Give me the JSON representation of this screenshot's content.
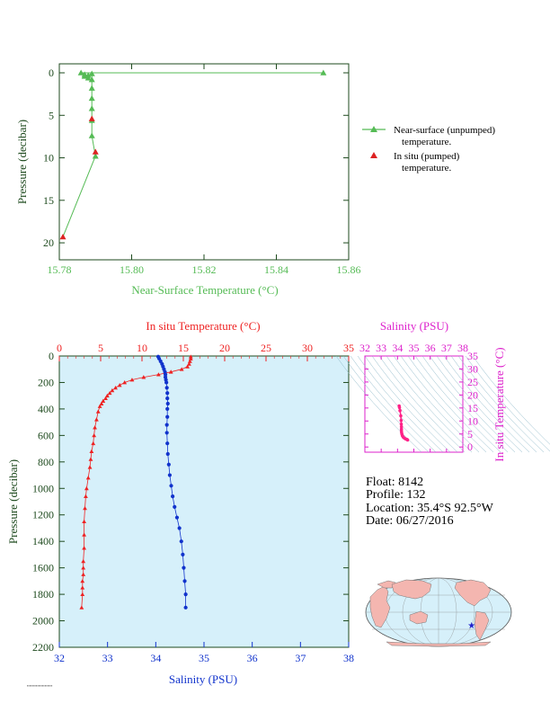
{
  "chart_data": [
    {
      "type": "line",
      "id": "near_surface",
      "xlabel": "Near-Surface Temperature (°C)",
      "ylabel": "Pressure (decibar)",
      "xlim": [
        15.78,
        15.86
      ],
      "ylim": [
        0,
        22
      ],
      "y_inverted": true,
      "xticks": [
        "15.78",
        "15.80",
        "15.82",
        "15.84",
        "15.86"
      ],
      "yticks": [
        "0",
        "5",
        "10",
        "15",
        "20"
      ],
      "grid": false,
      "legend_position": "right",
      "series": [
        {
          "name": "Near-surface (unpumped) temperature.",
          "color": "#55bb55",
          "marker": "triangle",
          "x": [
            15.853,
            15.786,
            15.787,
            15.787,
            15.788,
            15.788,
            15.789,
            15.789,
            15.789,
            15.789,
            15.789,
            15.789,
            15.789,
            15.79
          ],
          "y": [
            0.0,
            0.0,
            0.2,
            0.4,
            0.6,
            0.3,
            0.1,
            0.8,
            1.8,
            3.0,
            4.2,
            5.6,
            7.4,
            9.8
          ]
        },
        {
          "name": "In situ (pumped) temperature.",
          "color": "#dd2222",
          "marker": "triangle",
          "x": [
            15.789,
            15.79,
            15.781
          ],
          "y": [
            5.4,
            9.3,
            19.3
          ]
        }
      ]
    },
    {
      "type": "line",
      "id": "profile",
      "ylabel": "Pressure (decibar)",
      "ylim": [
        0,
        2200
      ],
      "y_inverted": true,
      "yticks": [
        "0",
        "200",
        "400",
        "600",
        "800",
        "1000",
        "1200",
        "1400",
        "1600",
        "1800",
        "2000",
        "2200"
      ],
      "x_top": {
        "label": "In situ Temperature (°C)",
        "lim": [
          0,
          35
        ],
        "ticks": [
          "0",
          "5",
          "10",
          "15",
          "20",
          "25",
          "30",
          "35"
        ]
      },
      "x_bottom": {
        "label": "Salinity (PSU)",
        "lim": [
          32,
          38
        ],
        "ticks": [
          "32",
          "33",
          "34",
          "35",
          "36",
          "37",
          "38"
        ]
      },
      "series": [
        {
          "name": "In situ Temperature",
          "color": "#ee2222",
          "marker": "triangle",
          "x": [
            15.9,
            15.9,
            15.8,
            15.7,
            15.5,
            14.8,
            13.5,
            12.0,
            10.2,
            8.8,
            7.9,
            7.3,
            6.8,
            6.4,
            6.1,
            5.8,
            5.6,
            5.3,
            5.1,
            4.9,
            4.7,
            4.5,
            4.3,
            4.2,
            4.1,
            3.9,
            3.8,
            3.7,
            3.5,
            3.3,
            3.2,
            3.1,
            3.0,
            3.0,
            3.0,
            2.9,
            2.9,
            2.9,
            2.8,
            2.8,
            2.8,
            2.7
          ],
          "y": [
            5,
            20,
            40,
            60,
            80,
            100,
            120,
            140,
            160,
            180,
            200,
            220,
            240,
            260,
            280,
            300,
            320,
            340,
            360,
            380,
            420,
            480,
            540,
            600,
            660,
            720,
            780,
            840,
            920,
            1000,
            1060,
            1150,
            1250,
            1350,
            1450,
            1550,
            1600,
            1650,
            1700,
            1750,
            1800,
            1900
          ]
        },
        {
          "name": "Salinity",
          "color": "#1133cc",
          "marker": "circle",
          "x": [
            34.05,
            34.07,
            34.1,
            34.13,
            34.15,
            34.17,
            34.19,
            34.2,
            34.2,
            34.21,
            34.22,
            34.23,
            34.24,
            34.24,
            34.25,
            34.24,
            34.24,
            34.23,
            34.23,
            34.24,
            34.25,
            34.27,
            34.29,
            34.32,
            34.35,
            34.39,
            34.44,
            34.49,
            34.53,
            34.56,
            34.58,
            34.6,
            34.62,
            34.62
          ],
          "y": [
            5,
            20,
            40,
            60,
            80,
            100,
            120,
            140,
            160,
            180,
            200,
            240,
            280,
            320,
            360,
            400,
            460,
            520,
            580,
            660,
            740,
            820,
            900,
            980,
            1060,
            1140,
            1220,
            1300,
            1400,
            1500,
            1600,
            1700,
            1800,
            1900
          ]
        }
      ]
    },
    {
      "type": "scatter",
      "id": "ts_diagram",
      "title": "Salinity (PSU)",
      "ylabel": "In situ Temperature (°C)",
      "xlim": [
        32,
        38
      ],
      "ylim": [
        -2,
        35
      ],
      "xticks": [
        "32",
        "33",
        "34",
        "35",
        "36",
        "37",
        "38"
      ],
      "yticks": [
        "0",
        "5",
        "10",
        "15",
        "20",
        "25",
        "30",
        "35"
      ],
      "series": [
        {
          "name": "T-S",
          "color": "#ff2288",
          "x": [
            34.1,
            34.12,
            34.15,
            34.2,
            34.22,
            34.23,
            34.24,
            34.24,
            34.24,
            34.25,
            34.27,
            34.3,
            34.35,
            34.42,
            34.5,
            34.58,
            34.62
          ],
          "y": [
            15.8,
            15.2,
            14.0,
            12.0,
            10.2,
            8.8,
            7.8,
            6.9,
            6.2,
            5.5,
            4.9,
            4.3,
            3.8,
            3.4,
            3.1,
            2.9,
            2.7
          ]
        }
      ]
    }
  ],
  "info": {
    "float": "Float:  8142",
    "profile": "Profile:  132",
    "location": "Location:  35.4°S  92.5°W",
    "date": "Date:  06/27/2016"
  },
  "map": {
    "float_lon": -92.5,
    "float_lat": -35.4,
    "land_color": "#f4b6b0",
    "ocean_color": "#d6f0fa",
    "marker_color": "#2222cc"
  },
  "colors": {
    "top_axis": "#55bb55",
    "temp": "#ee2222",
    "salinity": "#1133cc",
    "ts_frame": "#dd22cc",
    "profile_bg": "#d6f0fa",
    "axis_dark": "#1e4a1e"
  }
}
